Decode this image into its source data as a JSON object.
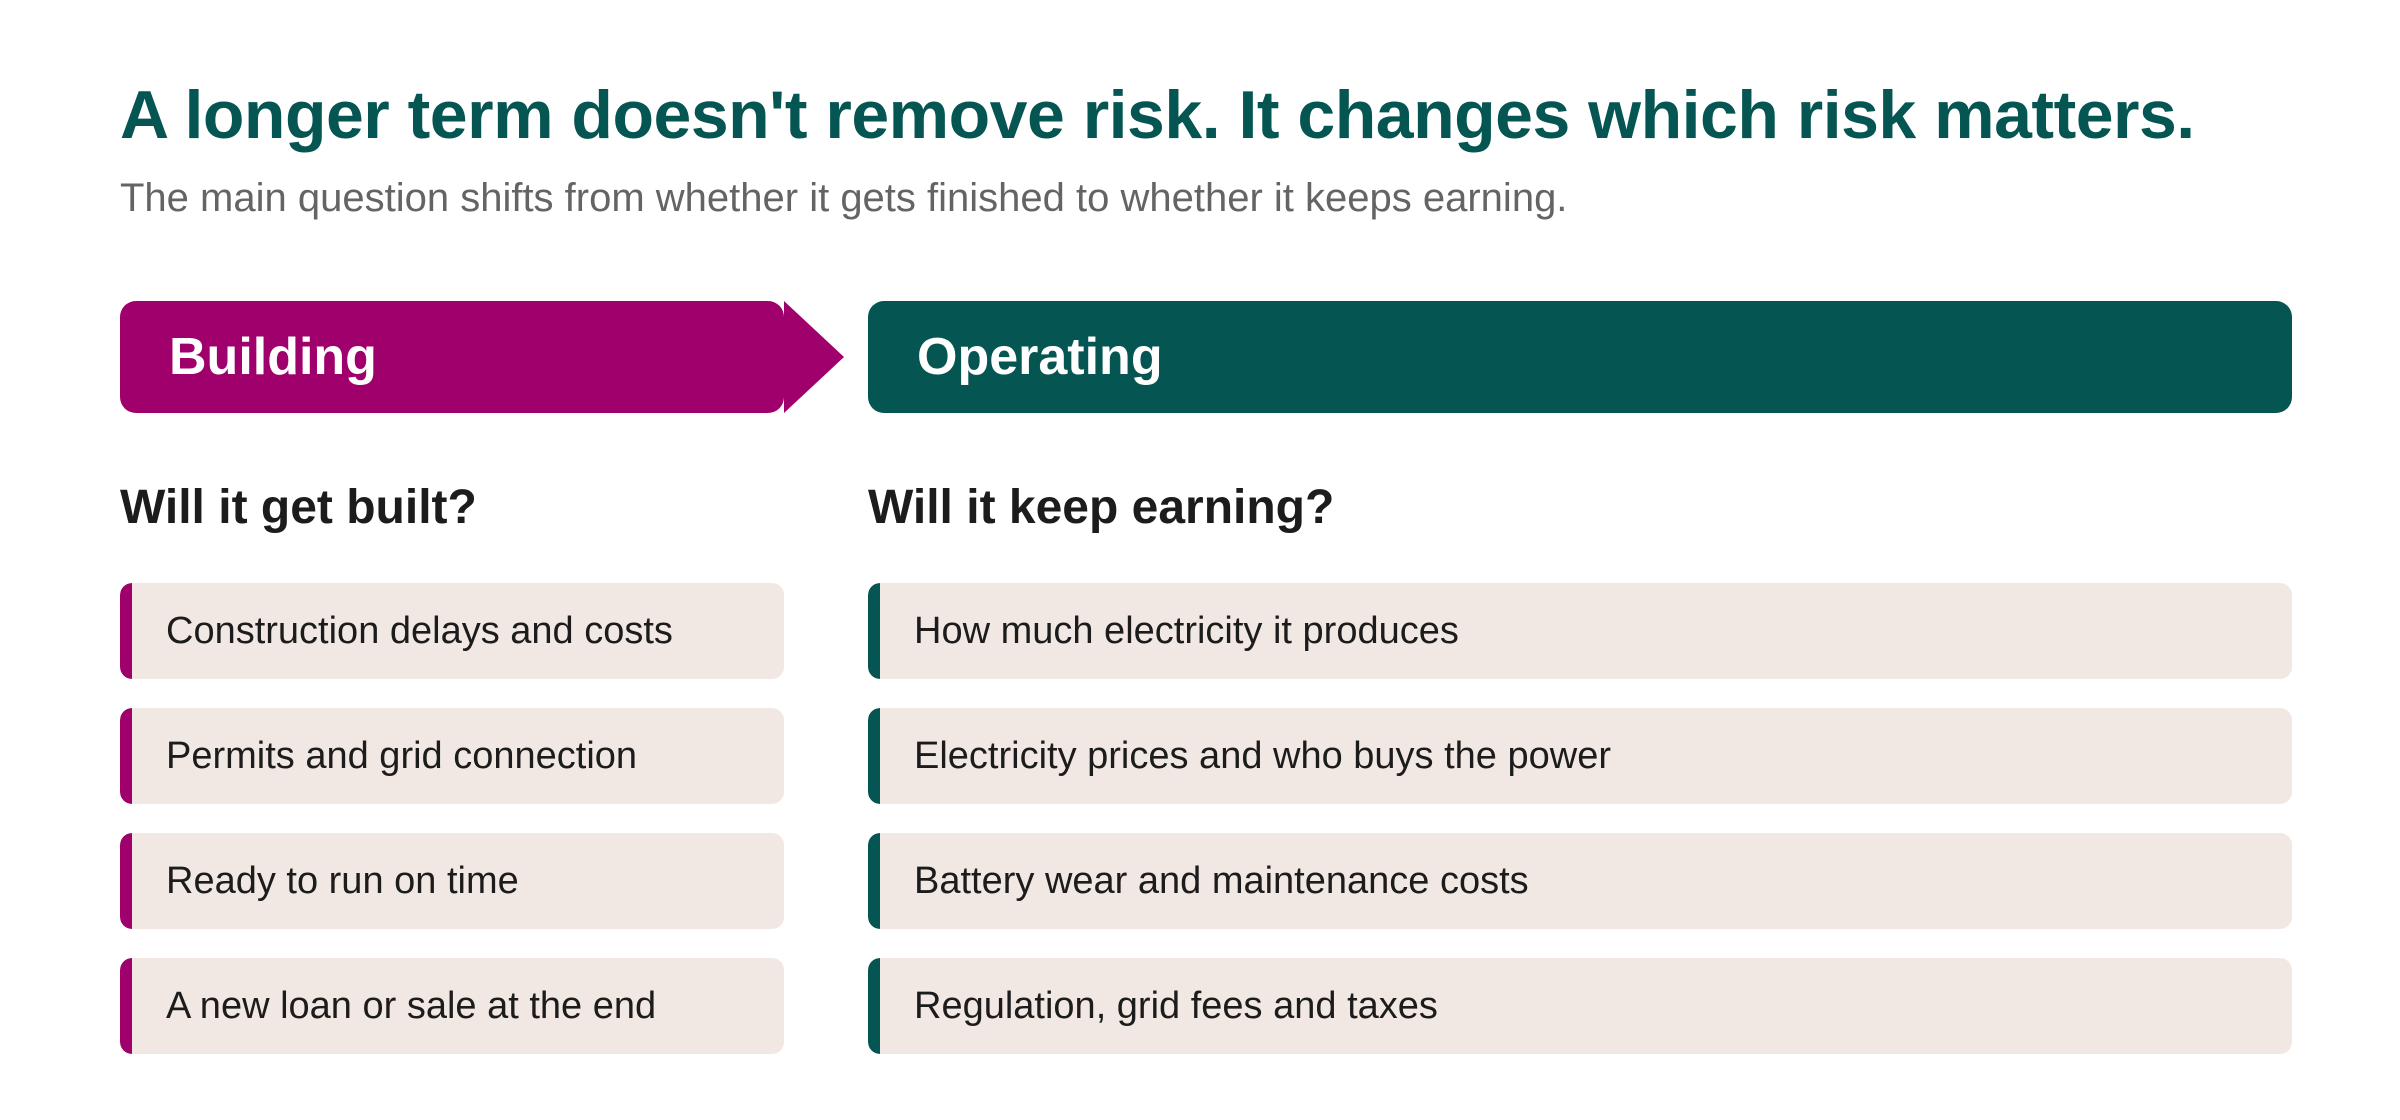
{
  "title": "A longer term doesn't remove risk. It changes which risk matters.",
  "subtitle": "The main question shifts from whether it gets finished to whether it keeps earning.",
  "colors": {
    "building": "#a0006b",
    "operating": "#055552",
    "card_background": "#f2e8e3",
    "title": "#055552"
  },
  "phases": {
    "building": {
      "label": "Building",
      "question": "Will it get built?",
      "items": [
        "Construction delays and costs",
        "Permits and grid connection",
        "Ready to run on time",
        "A new loan or sale at the end"
      ]
    },
    "operating": {
      "label": "Operating",
      "question": "Will it keep earning?",
      "items": [
        "How much electricity it produces",
        "Electricity prices and who buys the power",
        "Battery wear and maintenance costs",
        "Regulation, grid fees and taxes"
      ]
    }
  }
}
